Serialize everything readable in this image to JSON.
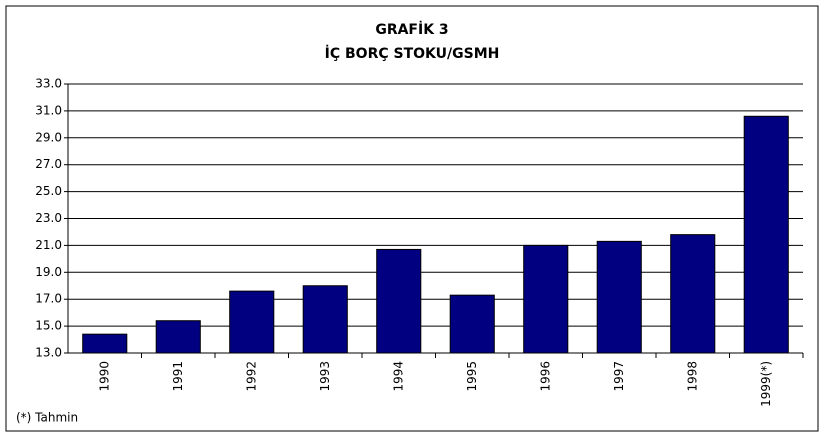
{
  "chart_data": {
    "type": "bar",
    "title": "GRAFİK 3",
    "subtitle": "İÇ BORÇ STOKU/GSMH",
    "categories": [
      "1990",
      "1991",
      "1992",
      "1993",
      "1994",
      "1995",
      "1996",
      "1997",
      "1998",
      "1999(*)"
    ],
    "values": [
      14.4,
      15.4,
      17.6,
      18.0,
      20.7,
      17.3,
      21.0,
      21.3,
      21.8,
      30.6
    ],
    "color": "#000080",
    "ylim": [
      13,
      33
    ],
    "yticks": [
      {
        "value": 13,
        "label": "13.0"
      },
      {
        "value": 15,
        "label": "15.0"
      },
      {
        "value": 17,
        "label": "17.0"
      },
      {
        "value": 19,
        "label": "19.0"
      },
      {
        "value": 21,
        "label": "21.0"
      },
      {
        "value": 23,
        "label": "23.0"
      },
      {
        "value": 25,
        "label": "25.0"
      },
      {
        "value": 27,
        "label": "27.0"
      },
      {
        "value": 29,
        "label": "29.0"
      },
      {
        "value": 31,
        "label": "31.0"
      },
      {
        "value": 33,
        "label": "33.0"
      }
    ],
    "grid": true,
    "note": "(*) Tahmin"
  }
}
